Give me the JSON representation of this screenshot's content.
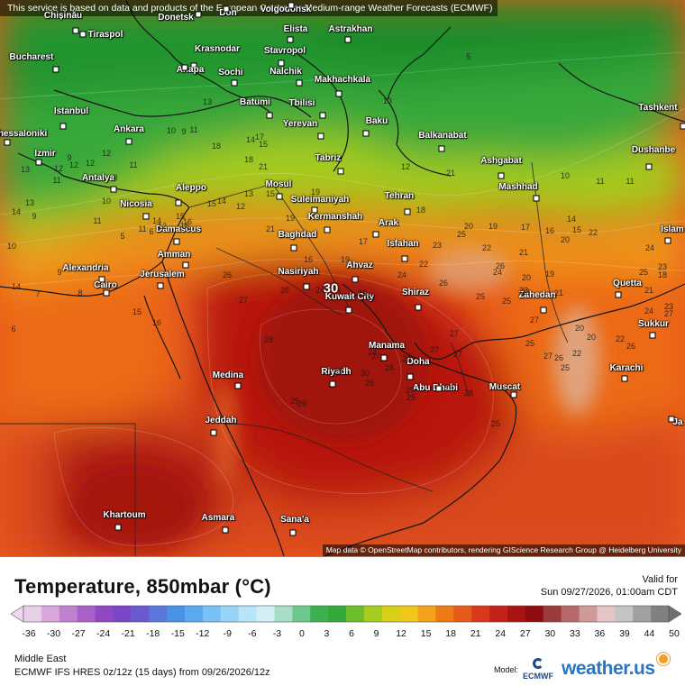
{
  "notice": "This service is based on data and products of the European Centre for Medium-range Weather Forecasts (ECMWF)",
  "attribution": "Map data © OpenStreetMap contributors, rendering GIScience Research Group @ Heidelberg University",
  "legend": {
    "title": "Temperature, 850mbar (°C)",
    "valid_label": "Valid for",
    "valid_time": "Sun 09/27/2026, 01:00am CDT",
    "ticks": [
      "-36",
      "-30",
      "-27",
      "-24",
      "-21",
      "-18",
      "-15",
      "-12",
      "-9",
      "-6",
      "-3",
      "0",
      "3",
      "6",
      "9",
      "12",
      "15",
      "18",
      "21",
      "24",
      "27",
      "30",
      "33",
      "36",
      "39",
      "44",
      "50"
    ]
  },
  "footer": {
    "region": "Middle East",
    "model_run": "ECMWF IFS HRES 0z/12z (15 days) from 09/26/2026/12z",
    "model_label": "Model:",
    "model_logo": "ECMWF",
    "brand": "weather.us"
  },
  "max_label": "30",
  "cities": [
    {
      "name": "Chișinău",
      "id": "chisinau"
    },
    {
      "name": "Donetsk",
      "id": "donetsk"
    },
    {
      "name": "Don",
      "id": "don"
    },
    {
      "name": "Volgodonsk",
      "id": "volgodonsk"
    },
    {
      "name": "Tiraspol",
      "id": "tiraspol"
    },
    {
      "name": "Elista",
      "id": "elista"
    },
    {
      "name": "Astrakhan",
      "id": "astrakhan"
    },
    {
      "name": "Bucharest",
      "id": "bucharest"
    },
    {
      "name": "Krasnodar",
      "id": "krasnodar"
    },
    {
      "name": "Stavropol",
      "id": "stavropol"
    },
    {
      "name": "Anapa",
      "id": "anapa"
    },
    {
      "name": "Sochi",
      "id": "sochi"
    },
    {
      "name": "Nalchik",
      "id": "nalchik"
    },
    {
      "name": "Makhachkala",
      "id": "makhachkala"
    },
    {
      "name": "Batumi",
      "id": "batumi"
    },
    {
      "name": "Tbilisi",
      "id": "tbilisi"
    },
    {
      "name": "Istanbul",
      "id": "istanbul"
    },
    {
      "name": "Tashkent",
      "id": "tashkent"
    },
    {
      "name": "Thessaloniki",
      "id": "thessaloniki"
    },
    {
      "name": "Ankara",
      "id": "ankara"
    },
    {
      "name": "Yerevan",
      "id": "yerevan"
    },
    {
      "name": "Baku",
      "id": "baku"
    },
    {
      "name": "Balkanabat",
      "id": "balkanabat"
    },
    {
      "name": "Izmir",
      "id": "izmir"
    },
    {
      "name": "Dushanbe",
      "id": "dushanbe"
    },
    {
      "name": "Tabriz",
      "id": "tabriz"
    },
    {
      "name": "Ashgabat",
      "id": "ashgabat"
    },
    {
      "name": "Antalya",
      "id": "antalya"
    },
    {
      "name": "Mosul",
      "id": "mosul"
    },
    {
      "name": "Aleppo",
      "id": "aleppo"
    },
    {
      "name": "Mashhad",
      "id": "mashhad"
    },
    {
      "name": "Suleimaniyah",
      "id": "suleimaniyah"
    },
    {
      "name": "Tehran",
      "id": "tehran"
    },
    {
      "name": "Nicosia",
      "id": "nicosia"
    },
    {
      "name": "Kermanshah",
      "id": "kermanshah"
    },
    {
      "name": "Arak",
      "id": "arak"
    },
    {
      "name": "Damascus",
      "id": "damascus"
    },
    {
      "name": "Baghdad",
      "id": "baghdad"
    },
    {
      "name": "Islam",
      "id": "islam"
    },
    {
      "name": "Amman",
      "id": "amman"
    },
    {
      "name": "Isfahan",
      "id": "isfahan"
    },
    {
      "name": "Alexandria",
      "id": "alexandria"
    },
    {
      "name": "Jerusalem",
      "id": "jerusalem"
    },
    {
      "name": "Ahvaz",
      "id": "ahvaz"
    },
    {
      "name": "Nasiriyah",
      "id": "nasiriyah"
    },
    {
      "name": "Quetta",
      "id": "quetta"
    },
    {
      "name": "Cairo",
      "id": "cairo"
    },
    {
      "name": "Shiraz",
      "id": "shiraz"
    },
    {
      "name": "Kuwait City",
      "id": "kuwait"
    },
    {
      "name": "Zahedan",
      "id": "zahedan"
    },
    {
      "name": "Sukkur",
      "id": "sukkur"
    },
    {
      "name": "Manama",
      "id": "manama"
    },
    {
      "name": "Doha",
      "id": "doha"
    },
    {
      "name": "Karachi",
      "id": "karachi"
    },
    {
      "name": "Riyadh",
      "id": "riyadh"
    },
    {
      "name": "Medina",
      "id": "medina"
    },
    {
      "name": "Abu Dhabi",
      "id": "abudhabi"
    },
    {
      "name": "Muscat",
      "id": "muscat"
    },
    {
      "name": "Ja",
      "id": "ja"
    },
    {
      "name": "Jeddah",
      "id": "jeddah"
    },
    {
      "name": "Khartoum",
      "id": "khartoum"
    },
    {
      "name": "Asmara",
      "id": "asmara"
    },
    {
      "name": "Sana'a",
      "id": "sanaa"
    }
  ],
  "contour_values": [
    "5",
    "13",
    "13",
    "9",
    "10",
    "11",
    "14",
    "15",
    "12",
    "11",
    "12",
    "10",
    "11",
    "11",
    "18",
    "18",
    "17",
    "19",
    "21",
    "21",
    "21",
    "24",
    "18",
    "20",
    "19",
    "17",
    "16",
    "14",
    "15",
    "26",
    "26",
    "23",
    "25",
    "22",
    "19",
    "27",
    "28",
    "29",
    "30",
    "27",
    "26",
    "29",
    "25",
    "24",
    "27",
    "28",
    "29",
    "28",
    "27",
    "25",
    "22",
    "23",
    "24",
    "25",
    "27",
    "28",
    "29",
    "25",
    "23",
    "26",
    "25",
    "25",
    "27",
    "26",
    "27",
    "22",
    "21",
    "20",
    "22",
    "20",
    "16",
    "15",
    "16",
    "14",
    "15",
    "12",
    "13",
    "15",
    "19",
    "16",
    "17",
    "19",
    "21",
    "23",
    "24",
    "25",
    "22",
    "26",
    "20",
    "21",
    "24",
    "23",
    "25",
    "24",
    "26",
    "27",
    "18",
    "21",
    "23",
    "20",
    "13",
    "12",
    "13",
    "14",
    "8",
    "10",
    "9",
    "14",
    "6",
    "11",
    "12",
    "12",
    "9",
    "6",
    "7",
    "11",
    "14",
    "12",
    "10",
    "11",
    "5",
    "9",
    "8",
    "16",
    "15"
  ],
  "colors": {
    "land_border": "#1a1a1a",
    "panel_text": "#111111",
    "brand": "#2a74c8"
  }
}
